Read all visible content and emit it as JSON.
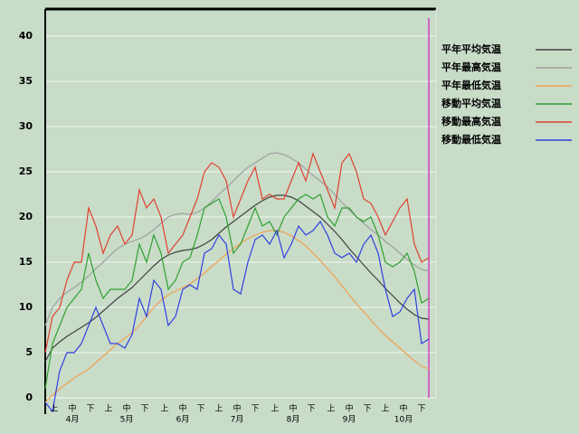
{
  "chart_data": {
    "type": "line",
    "x": [
      0,
      4,
      8,
      12,
      16,
      20,
      24,
      28,
      32,
      36,
      40,
      44,
      48,
      52,
      56,
      60,
      64,
      68,
      72,
      76,
      80,
      84,
      88,
      92,
      96,
      100,
      104,
      108,
      112,
      116,
      120,
      124,
      128,
      132,
      136,
      140,
      144,
      148,
      152,
      156,
      160,
      164,
      168,
      172,
      176,
      180,
      184,
      188,
      192,
      196,
      200,
      204,
      208,
      212
    ],
    "xlim": [
      0,
      216
    ],
    "xticks": [
      {
        "value": 5,
        "label": "上"
      },
      {
        "value": 15,
        "label": "中"
      },
      {
        "value": 25,
        "label": "下"
      },
      {
        "value": 35,
        "label": "上"
      },
      {
        "value": 45,
        "label": "中"
      },
      {
        "value": 55,
        "label": "下"
      },
      {
        "value": 66,
        "label": "上"
      },
      {
        "value": 76,
        "label": "中"
      },
      {
        "value": 86,
        "label": "下"
      },
      {
        "value": 96,
        "label": "上"
      },
      {
        "value": 106,
        "label": "中"
      },
      {
        "value": 116,
        "label": "下"
      },
      {
        "value": 127,
        "label": "上"
      },
      {
        "value": 137,
        "label": "中"
      },
      {
        "value": 147,
        "label": "下"
      },
      {
        "value": 158,
        "label": "上"
      },
      {
        "value": 168,
        "label": "中"
      },
      {
        "value": 178,
        "label": "下"
      },
      {
        "value": 188,
        "label": "上"
      },
      {
        "value": 198,
        "label": "中"
      },
      {
        "value": 208,
        "label": "下"
      }
    ],
    "month_labels": [
      {
        "value": 15,
        "label": "4月"
      },
      {
        "value": 45,
        "label": "5月"
      },
      {
        "value": 76,
        "label": "6月"
      },
      {
        "value": 106,
        "label": "7月"
      },
      {
        "value": 137,
        "label": "8月"
      },
      {
        "value": 168,
        "label": "9月"
      },
      {
        "value": 198,
        "label": "10月"
      }
    ],
    "ylim": [
      -2,
      43
    ],
    "yticks": [
      0,
      5,
      10,
      15,
      20,
      25,
      30,
      35,
      40
    ],
    "grid": true,
    "marker_x": 212,
    "marker_color": "#d040c0",
    "series": [
      {
        "name": "平年平均気温",
        "color": "#404040",
        "values": [
          4,
          5.5,
          6.2,
          6.8,
          7.3,
          7.8,
          8.3,
          8.9,
          9.6,
          10.3,
          11,
          11.6,
          12.2,
          13,
          13.8,
          14.6,
          15.3,
          15.8,
          16.1,
          16.3,
          16.4,
          16.6,
          17,
          17.5,
          18.2,
          18.9,
          19.5,
          20.1,
          20.7,
          21.3,
          21.8,
          22.2,
          22.4,
          22.4,
          22.2,
          21.8,
          21.2,
          20.6,
          20,
          19.2,
          18.4,
          17.5,
          16.5,
          15.6,
          14.7,
          13.8,
          13,
          12.1,
          11.3,
          10.5,
          9.8,
          9.2,
          8.8,
          8.7
        ]
      },
      {
        "name": "平年最高気温",
        "color": "#a0a0a0",
        "values": [
          8,
          10,
          11,
          11.7,
          12.2,
          12.8,
          13.5,
          14.3,
          15,
          15.8,
          16.5,
          17,
          17.3,
          17.6,
          18,
          18.6,
          19.3,
          20,
          20.3,
          20.4,
          20.3,
          20.5,
          21,
          21.7,
          22.5,
          23.2,
          24,
          24.8,
          25.5,
          26,
          26.5,
          27,
          27.1,
          26.9,
          26.5,
          26,
          25.3,
          24.6,
          24,
          23.3,
          22.5,
          21.6,
          20.8,
          20,
          19.3,
          18.6,
          18,
          17.3,
          16.7,
          16,
          15.3,
          14.7,
          14.2,
          14
        ]
      },
      {
        "name": "平年最低気温",
        "color": "#f0a050",
        "values": [
          -0.5,
          0.3,
          1,
          1.6,
          2.2,
          2.7,
          3.2,
          3.9,
          4.6,
          5.3,
          6,
          6.6,
          7.2,
          8,
          9,
          10,
          10.8,
          11.4,
          11.8,
          12.2,
          12.6,
          13.2,
          13.8,
          14.5,
          15.2,
          15.9,
          16.5,
          17.1,
          17.6,
          18,
          18.3,
          18.5,
          18.5,
          18.3,
          17.9,
          17.4,
          16.8,
          16,
          15.2,
          14.3,
          13.4,
          12.4,
          11.4,
          10.4,
          9.5,
          8.6,
          7.7,
          6.9,
          6.2,
          5.5,
          4.8,
          4.1,
          3.5,
          3.2
        ]
      },
      {
        "name": "移動平均気温",
        "color": "#30a030",
        "values": [
          1,
          6,
          8,
          10,
          11,
          12,
          16,
          13,
          11,
          12,
          12,
          12,
          13,
          17,
          15,
          18,
          16,
          12,
          13,
          15,
          15.5,
          18,
          21,
          21.5,
          22,
          20,
          16,
          17,
          19,
          21,
          19,
          19.5,
          18,
          20,
          21,
          22,
          22.5,
          22,
          22.5,
          20,
          19,
          21,
          21,
          20,
          19.5,
          20,
          18,
          15,
          14.5,
          15,
          16,
          14,
          10.5,
          11
        ]
      },
      {
        "name": "移動最高気温",
        "color": "#e04030",
        "values": [
          5,
          9,
          10,
          13,
          15,
          15,
          21,
          19,
          16,
          18,
          19,
          17,
          18,
          23,
          21,
          22,
          20,
          16,
          17,
          18,
          20,
          22,
          25,
          26,
          25.5,
          24,
          20,
          22,
          24,
          25.5,
          22,
          22.5,
          22,
          22,
          24,
          26,
          24,
          27,
          25,
          23,
          21,
          26,
          27,
          25,
          22,
          21.5,
          20,
          18,
          19.5,
          21,
          22,
          17,
          15,
          15.5
        ]
      },
      {
        "name": "移動最低気温",
        "color": "#3040e0",
        "values": [
          -0.5,
          -1.5,
          3,
          5,
          5,
          6,
          8,
          10,
          8,
          6,
          6,
          5.5,
          7,
          11,
          9,
          13,
          12,
          8,
          9,
          12,
          12.5,
          12,
          16,
          16.5,
          18,
          17,
          12,
          11.5,
          15,
          17.5,
          18,
          17,
          18.5,
          15.5,
          17,
          19,
          18,
          18.5,
          19.5,
          18,
          16,
          15.5,
          16,
          15,
          17,
          18,
          16,
          12,
          9,
          9.5,
          11,
          12,
          6,
          6.5
        ]
      }
    ]
  }
}
